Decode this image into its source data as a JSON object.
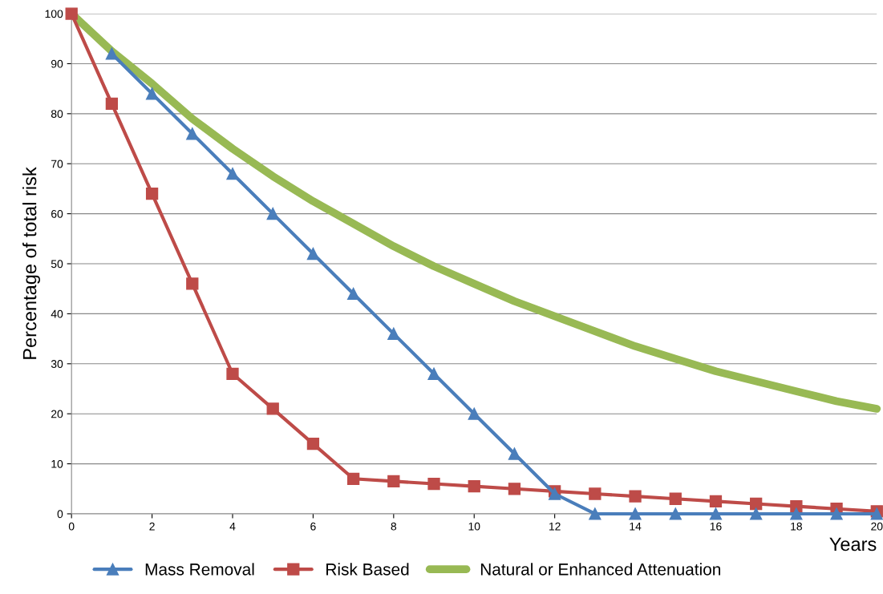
{
  "chart_data": {
    "type": "line",
    "xlabel": "Years",
    "ylabel": "Percentage of total risk",
    "x": [
      0,
      1,
      2,
      3,
      4,
      5,
      6,
      7,
      8,
      9,
      10,
      11,
      12,
      13,
      14,
      15,
      16,
      17,
      18,
      19,
      20
    ],
    "series": [
      {
        "name": "Mass Removal",
        "color": "#4a7ebb",
        "marker": "triangle",
        "values": [
          null,
          92,
          84,
          76,
          68,
          60,
          52,
          44,
          36,
          28,
          20,
          12,
          4,
          0,
          0,
          0,
          0,
          0,
          0,
          0,
          0
        ]
      },
      {
        "name": "Risk Based",
        "color": "#be4b48",
        "marker": "square",
        "values": [
          100,
          82,
          64,
          46,
          28,
          21,
          14,
          7,
          6.5,
          6,
          5.5,
          5,
          4.5,
          4,
          3.5,
          3,
          2.5,
          2,
          1.5,
          1,
          0.5
        ]
      },
      {
        "name": "Natural or Enhanced Attenuation",
        "color": "#98b954",
        "marker": "none",
        "values": [
          100,
          92.5,
          86,
          79,
          73,
          67.5,
          62.5,
          58,
          53.5,
          49.5,
          46,
          42.5,
          39.5,
          36.5,
          33.5,
          31,
          28.5,
          26.5,
          24.5,
          22.5,
          21
        ]
      }
    ],
    "xlim": [
      0,
      20
    ],
    "xticks": [
      0,
      2,
      4,
      6,
      8,
      10,
      12,
      14,
      16,
      18,
      20
    ],
    "ylim": [
      0,
      100
    ],
    "yticks": [
      0,
      10,
      20,
      30,
      40,
      50,
      60,
      70,
      80,
      90,
      100
    ],
    "grid": "y",
    "legend": "bottom"
  }
}
